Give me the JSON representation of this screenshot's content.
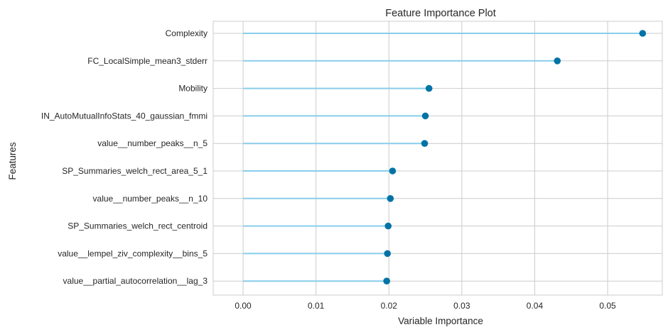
{
  "chart_data": {
    "type": "lollipop",
    "title": "Feature Importance Plot",
    "xlabel": "Variable Importance",
    "ylabel": "Features",
    "xlim": [
      -0.0041,
      0.0575
    ],
    "xticks": [
      0.0,
      0.01,
      0.02,
      0.03,
      0.04,
      0.05
    ],
    "xtick_labels": [
      "0.00",
      "0.01",
      "0.02",
      "0.03",
      "0.04",
      "0.05"
    ],
    "grid": true,
    "colors": {
      "stem": "#87ceeb",
      "marker": "#0173a6",
      "grid": "#cccccc",
      "spine": "#cccccc"
    },
    "categories": [
      "Complexity",
      "FC_LocalSimple_mean3_stderr",
      "Mobility",
      "IN_AutoMutualInfoStats_40_gaussian_fmmi",
      "value__number_peaks__n_5",
      "SP_Summaries_welch_rect_area_5_1",
      "value__number_peaks__n_10",
      "SP_Summaries_welch_rect_centroid",
      "value__lempel_ziv_complexity__bins_5",
      "value__partial_autocorrelation__lag_3"
    ],
    "values": [
      0.0548,
      0.0431,
      0.0255,
      0.025,
      0.0249,
      0.0205,
      0.0202,
      0.0199,
      0.0198,
      0.0197
    ]
  }
}
